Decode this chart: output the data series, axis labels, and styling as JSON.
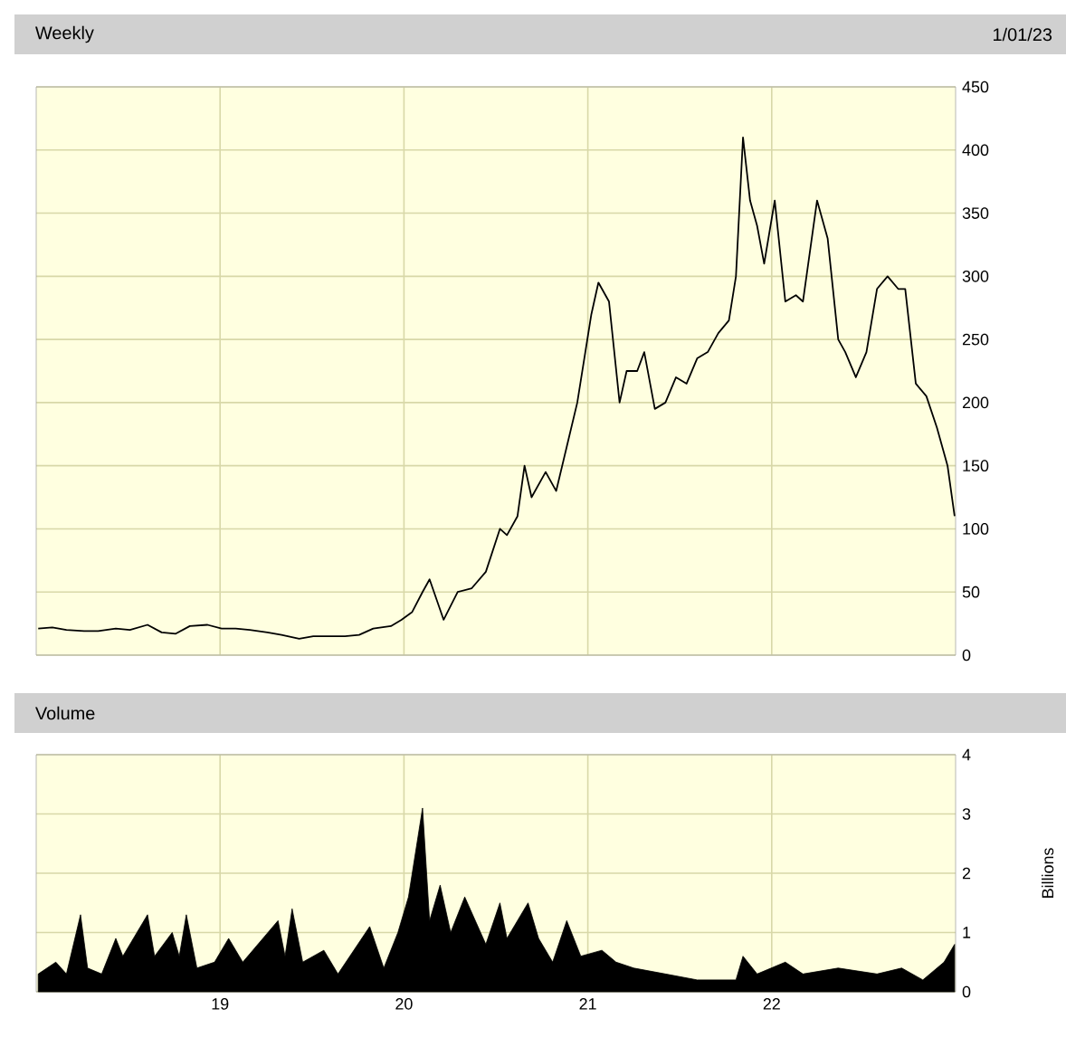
{
  "chart_data": [
    {
      "type": "line",
      "title": "Weekly",
      "subtitle": "1/01/23",
      "xlim": [
        "2018-01-01",
        "2023-01-01"
      ],
      "ylim": [
        0,
        450
      ],
      "grid": true,
      "tick_labels": "y",
      "xticks": [
        {
          "value": "2019-01-01",
          "label": null
        },
        {
          "value": "2020-01-01",
          "label": null
        },
        {
          "value": "2021-01-01",
          "label": null
        },
        {
          "value": "2022-01-01",
          "label": null
        }
      ],
      "yticks": [
        0,
        50,
        100,
        150,
        200,
        250,
        300,
        350,
        400,
        450
      ],
      "series": [
        {
          "color": "#000000",
          "x": [
            "2018-01-05",
            "2018-02-02",
            "2018-03-02",
            "2018-04-06",
            "2018-05-04",
            "2018-06-08",
            "2018-07-06",
            "2018-08-10",
            "2018-09-07",
            "2018-10-05",
            "2018-11-02",
            "2018-12-07",
            "2019-01-04",
            "2019-02-01",
            "2019-03-01",
            "2019-04-05",
            "2019-05-03",
            "2019-06-07",
            "2019-07-05",
            "2019-08-09",
            "2019-09-06",
            "2019-10-04",
            "2019-11-01",
            "2019-12-06",
            "2019-12-27",
            "2020-01-17",
            "2020-02-07",
            "2020-02-21",
            "2020-03-20",
            "2020-04-17",
            "2020-05-15",
            "2020-06-12",
            "2020-07-10",
            "2020-07-24",
            "2020-08-14",
            "2020-08-28",
            "2020-09-11",
            "2020-10-09",
            "2020-10-30",
            "2020-11-20",
            "2020-12-11",
            "2021-01-08",
            "2021-01-22",
            "2021-02-12",
            "2021-03-05",
            "2021-03-19",
            "2021-04-09",
            "2021-04-23",
            "2021-05-14",
            "2021-06-04",
            "2021-06-25",
            "2021-07-16",
            "2021-08-06",
            "2021-08-27",
            "2021-09-17",
            "2021-10-08",
            "2021-10-22",
            "2021-11-05",
            "2021-11-19",
            "2021-12-03",
            "2021-12-17",
            "2022-01-07",
            "2022-01-28",
            "2022-02-18",
            "2022-03-04",
            "2022-04-01",
            "2022-04-22",
            "2022-05-13",
            "2022-05-27",
            "2022-06-17",
            "2022-07-08",
            "2022-07-29",
            "2022-08-19",
            "2022-09-09",
            "2022-09-23",
            "2022-10-14",
            "2022-11-04",
            "2022-11-25",
            "2022-12-16",
            "2022-12-30"
          ],
          "values": [
            21,
            22,
            20,
            19,
            19,
            21,
            20,
            24,
            18,
            17,
            23,
            24,
            21,
            21,
            20,
            18,
            16,
            13,
            15,
            15,
            15,
            16,
            21,
            23,
            28,
            34,
            50,
            60,
            28,
            50,
            53,
            66,
            100,
            95,
            110,
            150,
            125,
            145,
            130,
            165,
            200,
            270,
            295,
            280,
            200,
            225,
            225,
            240,
            195,
            200,
            220,
            215,
            235,
            240,
            255,
            265,
            300,
            410,
            360,
            340,
            310,
            360,
            280,
            285,
            280,
            360,
            330,
            250,
            240,
            220,
            240,
            290,
            300,
            290,
            290,
            215,
            205,
            180,
            150,
            110
          ]
        }
      ]
    },
    {
      "type": "area",
      "title": "Volume",
      "ylabel": "Billions",
      "xlim": [
        "2018-01-01",
        "2023-01-01"
      ],
      "ylim": [
        0,
        4
      ],
      "grid": true,
      "xticks": [
        {
          "value": "2019-01-01",
          "label": "19"
        },
        {
          "value": "2020-01-01",
          "label": "20"
        },
        {
          "value": "2021-01-01",
          "label": "21"
        },
        {
          "value": "2022-01-01",
          "label": "22"
        }
      ],
      "yticks": [
        0,
        1,
        2,
        3,
        4
      ],
      "series": [
        {
          "color": "#000000",
          "x": [
            "2018-01-05",
            "2018-02-09",
            "2018-03-02",
            "2018-03-30",
            "2018-04-13",
            "2018-05-11",
            "2018-06-08",
            "2018-06-22",
            "2018-08-10",
            "2018-08-24",
            "2018-09-28",
            "2018-10-12",
            "2018-10-26",
            "2018-11-16",
            "2018-12-21",
            "2019-01-18",
            "2019-02-15",
            "2019-04-26",
            "2019-05-10",
            "2019-05-24",
            "2019-06-14",
            "2019-07-26",
            "2019-08-23",
            "2019-10-25",
            "2019-11-22",
            "2019-12-20",
            "2020-01-10",
            "2020-02-07",
            "2020-02-21",
            "2020-03-13",
            "2020-04-03",
            "2020-05-01",
            "2020-06-12",
            "2020-07-10",
            "2020-07-24",
            "2020-09-04",
            "2020-09-25",
            "2020-10-23",
            "2020-11-20",
            "2020-12-18",
            "2021-01-29",
            "2021-02-26",
            "2021-04-02",
            "2021-06-04",
            "2021-08-06",
            "2021-10-22",
            "2021-11-05",
            "2021-12-03",
            "2022-01-28",
            "2022-03-04",
            "2022-05-13",
            "2022-07-29",
            "2022-09-16",
            "2022-10-28",
            "2022-12-09",
            "2022-12-30"
          ],
          "values": [
            0.3,
            0.5,
            0.3,
            1.3,
            0.4,
            0.3,
            0.9,
            0.6,
            1.3,
            0.6,
            1.0,
            0.6,
            1.3,
            0.4,
            0.5,
            0.9,
            0.5,
            1.2,
            0.6,
            1.4,
            0.5,
            0.7,
            0.3,
            1.1,
            0.4,
            1.0,
            1.6,
            3.1,
            1.2,
            1.8,
            1.0,
            1.6,
            0.8,
            1.5,
            0.9,
            1.5,
            0.9,
            0.5,
            1.2,
            0.6,
            0.7,
            0.5,
            0.4,
            0.3,
            0.2,
            0.2,
            0.6,
            0.3,
            0.5,
            0.3,
            0.4,
            0.3,
            0.4,
            0.2,
            0.5,
            0.8
          ]
        }
      ]
    }
  ]
}
